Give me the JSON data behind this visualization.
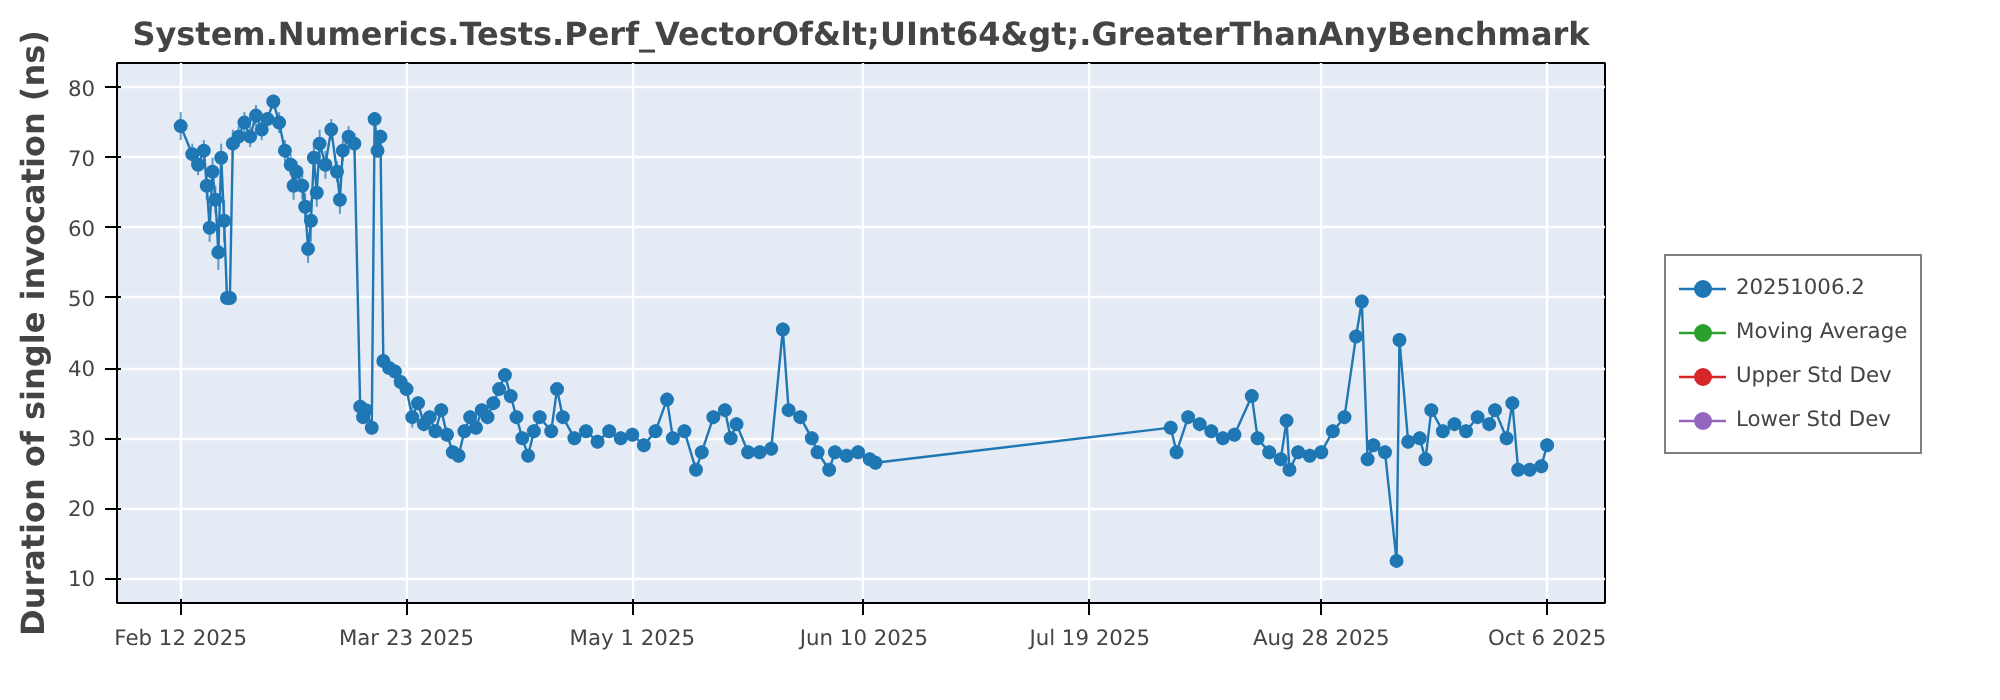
{
  "chart_data": {
    "type": "line",
    "title": "System.Numerics.Tests.Perf_VectorOf&lt;UInt64&gt;.GreaterThanAnyBenchmark",
    "ylabel": "Duration of single invocation (ns)",
    "xlim": [
      "2025-02-01",
      "2025-10-16"
    ],
    "xticks": [
      {
        "value": "2025-02-12",
        "label": "Feb 12 2025"
      },
      {
        "value": "2025-03-23",
        "label": "Mar 23 2025"
      },
      {
        "value": "2025-05-01",
        "label": "May 1 2025"
      },
      {
        "value": "2025-06-10",
        "label": "Jun 10 2025"
      },
      {
        "value": "2025-07-19",
        "label": "Jul 19 2025"
      },
      {
        "value": "2025-08-28",
        "label": "Aug 28 2025"
      },
      {
        "value": "2025-10-06",
        "label": "Oct 6 2025"
      }
    ],
    "ylim": [
      6.5,
      83.5
    ],
    "yticks": [
      10,
      20,
      30,
      40,
      50,
      60,
      70,
      80
    ],
    "grid": true,
    "legend": "right",
    "marker": "circle",
    "line_style": "solid",
    "series": [
      {
        "name": "20251006.2",
        "color": "#1f77b4",
        "x": [
          "2025-02-12",
          "2025-02-14",
          "2025-02-15",
          "2025-02-16",
          "2025-02-16T12:00",
          "2025-02-17",
          "2025-02-17T12:00",
          "2025-02-18",
          "2025-02-18T12:00",
          "2025-02-19",
          "2025-02-19T12:00",
          "2025-02-20",
          "2025-02-20T12:00",
          "2025-02-21",
          "2025-02-22",
          "2025-02-23",
          "2025-02-24",
          "2025-02-25",
          "2025-02-26",
          "2025-02-27",
          "2025-02-28",
          "2025-03-01",
          "2025-03-02",
          "2025-03-03",
          "2025-03-03T12:00",
          "2025-03-04",
          "2025-03-05",
          "2025-03-05T12:00",
          "2025-03-06",
          "2025-03-06T12:00",
          "2025-03-07",
          "2025-03-07T12:00",
          "2025-03-08",
          "2025-03-09",
          "2025-03-10",
          "2025-03-11",
          "2025-03-11T12:00",
          "2025-03-12",
          "2025-03-13",
          "2025-03-14",
          "2025-03-15",
          "2025-03-15T12:00",
          "2025-03-16",
          "2025-03-17",
          "2025-03-17T12:00",
          "2025-03-18",
          "2025-03-18T12:00",
          "2025-03-19",
          "2025-03-20",
          "2025-03-21",
          "2025-03-22",
          "2025-03-23",
          "2025-03-24",
          "2025-03-25",
          "2025-03-26",
          "2025-03-27",
          "2025-03-28",
          "2025-03-29",
          "2025-03-30",
          "2025-03-31",
          "2025-04-01",
          "2025-04-02",
          "2025-04-03",
          "2025-04-04",
          "2025-04-05",
          "2025-04-06",
          "2025-04-07",
          "2025-04-08",
          "2025-04-09",
          "2025-04-10",
          "2025-04-11",
          "2025-04-12",
          "2025-04-13",
          "2025-04-14",
          "2025-04-15",
          "2025-04-17",
          "2025-04-18",
          "2025-04-19",
          "2025-04-21",
          "2025-04-23",
          "2025-04-25",
          "2025-04-27",
          "2025-04-29",
          "2025-05-01",
          "2025-05-03",
          "2025-05-05",
          "2025-05-07",
          "2025-05-08",
          "2025-05-10",
          "2025-05-12",
          "2025-05-13",
          "2025-05-15",
          "2025-05-17",
          "2025-05-18",
          "2025-05-19",
          "2025-05-21",
          "2025-05-23",
          "2025-05-25",
          "2025-05-27",
          "2025-05-28",
          "2025-05-30",
          "2025-06-01",
          "2025-06-02",
          "2025-06-04",
          "2025-06-05",
          "2025-06-07",
          "2025-06-09",
          "2025-06-11",
          "2025-06-12",
          "2025-08-02",
          "2025-08-03",
          "2025-08-05",
          "2025-08-07",
          "2025-08-09",
          "2025-08-11",
          "2025-08-13",
          "2025-08-16",
          "2025-08-17",
          "2025-08-19",
          "2025-08-21",
          "2025-08-22",
          "2025-08-22T12:00",
          "2025-08-24",
          "2025-08-26",
          "2025-08-28",
          "2025-08-30",
          "2025-09-01",
          "2025-09-03",
          "2025-09-04",
          "2025-09-05",
          "2025-09-06",
          "2025-09-08",
          "2025-09-10",
          "2025-09-10T12:00",
          "2025-09-12",
          "2025-09-14",
          "2025-09-15",
          "2025-09-16",
          "2025-09-18",
          "2025-09-20",
          "2025-09-22",
          "2025-09-24",
          "2025-09-26",
          "2025-09-27",
          "2025-09-29",
          "2025-09-30",
          "2025-10-01",
          "2025-10-03",
          "2025-10-05",
          "2025-10-06"
        ],
        "values": [
          74.5,
          70.5,
          69,
          71,
          66,
          60,
          68,
          64,
          56.5,
          70,
          61,
          50,
          50,
          72,
          73,
          75,
          73,
          76,
          74,
          75.5,
          78,
          75,
          71,
          69,
          66,
          68,
          66,
          63,
          57,
          61,
          70,
          65,
          72,
          69,
          74,
          68,
          64,
          71,
          73,
          72,
          34.5,
          33,
          34,
          31.5,
          75.5,
          71,
          73,
          41,
          40,
          39.5,
          38,
          37,
          33,
          35,
          32,
          33,
          31,
          34,
          30.5,
          28,
          27.5,
          31,
          33,
          31.5,
          34,
          33,
          35,
          37,
          39,
          36,
          33,
          30,
          27.5,
          31,
          33,
          31,
          37,
          33,
          30,
          31,
          29.5,
          31,
          30,
          30.5,
          29,
          31,
          35.5,
          30,
          31,
          25.5,
          28,
          33,
          34,
          30,
          32,
          28,
          28,
          28.5,
          45.5,
          34,
          33,
          30,
          28,
          25.5,
          28,
          27.5,
          28,
          27,
          26.5,
          31.5,
          28,
          33,
          32,
          31,
          30,
          30.5,
          36,
          30,
          28,
          27,
          32.5,
          25.5,
          28,
          27.5,
          28,
          31,
          33,
          44.5,
          49.5,
          27,
          29,
          28,
          12.5,
          44,
          29.5,
          30,
          27,
          34,
          31,
          32,
          31,
          33,
          32,
          34,
          30,
          35,
          25.5,
          25.5,
          26,
          29
        ],
        "errors": [
          2,
          1.5,
          1.5,
          1.5,
          2,
          2,
          2,
          2,
          2.5,
          2,
          3,
          1,
          1,
          2,
          1.5,
          1.5,
          1.5,
          1.5,
          1.5,
          1,
          1,
          1.5,
          1.5,
          1.5,
          2,
          1.5,
          2,
          2,
          2,
          3,
          2,
          2,
          2,
          2,
          1.5,
          1.5,
          2,
          1.5,
          1.5,
          1.5,
          1,
          1,
          1,
          1,
          1,
          1,
          1,
          1,
          1,
          1,
          1,
          1,
          1.5,
          1,
          1,
          1,
          1,
          1,
          1,
          1,
          1,
          1,
          1,
          1,
          1,
          1,
          1,
          1,
          1,
          1,
          1,
          1,
          1,
          1,
          1,
          1,
          1,
          1,
          1,
          1,
          1,
          1,
          1,
          1,
          1,
          1,
          1,
          1,
          1,
          1,
          1,
          1,
          1,
          1,
          1,
          1,
          1,
          1,
          1,
          1,
          1,
          1,
          1,
          1,
          1,
          1,
          1,
          1,
          1,
          1,
          1,
          1,
          1,
          1,
          1,
          1,
          1,
          1,
          1,
          1,
          1,
          1,
          1,
          1,
          1,
          1,
          1,
          1,
          1,
          1,
          1,
          1,
          1,
          1,
          1,
          1,
          1,
          1,
          1,
          1,
          1,
          1,
          1,
          1,
          1,
          1,
          1,
          1,
          1,
          1
        ]
      },
      {
        "name": "Moving Average",
        "color": "#2ca02c"
      },
      {
        "name": "Upper Std Dev",
        "color": "#d62728"
      },
      {
        "name": "Lower Std Dev",
        "color": "#9467bd"
      }
    ]
  }
}
